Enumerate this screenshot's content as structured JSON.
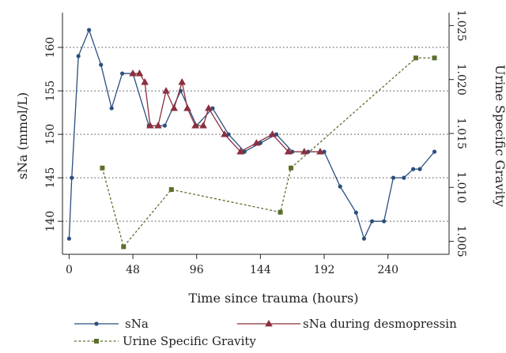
{
  "chart_data": {
    "type": "line",
    "xlabel": "Time since trauma (hours)",
    "ylabel": "sNa (mmol/L)",
    "y2label": "Urine Specific Gravity",
    "xlim": [
      -5,
      286
    ],
    "ylim": [
      136.2,
      164
    ],
    "y2lim": [
      1.0038,
      1.0262
    ],
    "x_ticks": [
      0,
      48,
      96,
      144,
      192,
      240
    ],
    "y_ticks": [
      140,
      145,
      150,
      155,
      160
    ],
    "y2_ticks": [
      1.005,
      1.01,
      1.015,
      1.02,
      1.025
    ],
    "y2_tick_labels": [
      "1.005",
      "1.010",
      "1.015",
      "1.020",
      "1.025"
    ],
    "grid": "horizontal dotted",
    "legend": "bottom",
    "series": [
      {
        "name": "sNa",
        "axis": "left",
        "color": "#2b4f7f",
        "marker": "circle",
        "line": "solid",
        "x": [
          0,
          2,
          7,
          15,
          24,
          32,
          40,
          48,
          60,
          72,
          84,
          96,
          108,
          120,
          132,
          144,
          156,
          168,
          180,
          192,
          204,
          216,
          222,
          228,
          237,
          244,
          252,
          259,
          264,
          275
        ],
        "y": [
          138,
          145,
          159,
          162,
          158,
          153,
          157,
          157,
          151,
          151,
          155,
          151,
          153,
          150,
          148,
          149,
          150,
          148,
          148,
          148,
          144,
          141,
          138,
          140,
          140,
          145,
          145,
          146,
          146,
          148
        ]
      },
      {
        "name": "sNa during desmopressin",
        "axis": "left",
        "color": "#8b2f3e",
        "marker": "triangle",
        "line": "solid",
        "x": [
          48,
          53,
          57,
          61,
          67,
          73,
          79,
          85,
          89,
          95,
          101,
          105,
          117,
          129,
          141,
          153,
          165,
          177,
          189
        ],
        "y": [
          157,
          157,
          156,
          151,
          151,
          155,
          153,
          156,
          153,
          151,
          151,
          153,
          150,
          148,
          149,
          150,
          148,
          148,
          148
        ]
      },
      {
        "name": "Urine Specific Gravity",
        "axis": "right",
        "color": "#5b6f2b",
        "marker": "square",
        "line": "dashed",
        "x": [
          25,
          41,
          77,
          159,
          167,
          261,
          275
        ],
        "y": [
          1.0118,
          1.0045,
          1.0098,
          1.0077,
          1.0118,
          1.022,
          1.022
        ]
      }
    ]
  }
}
